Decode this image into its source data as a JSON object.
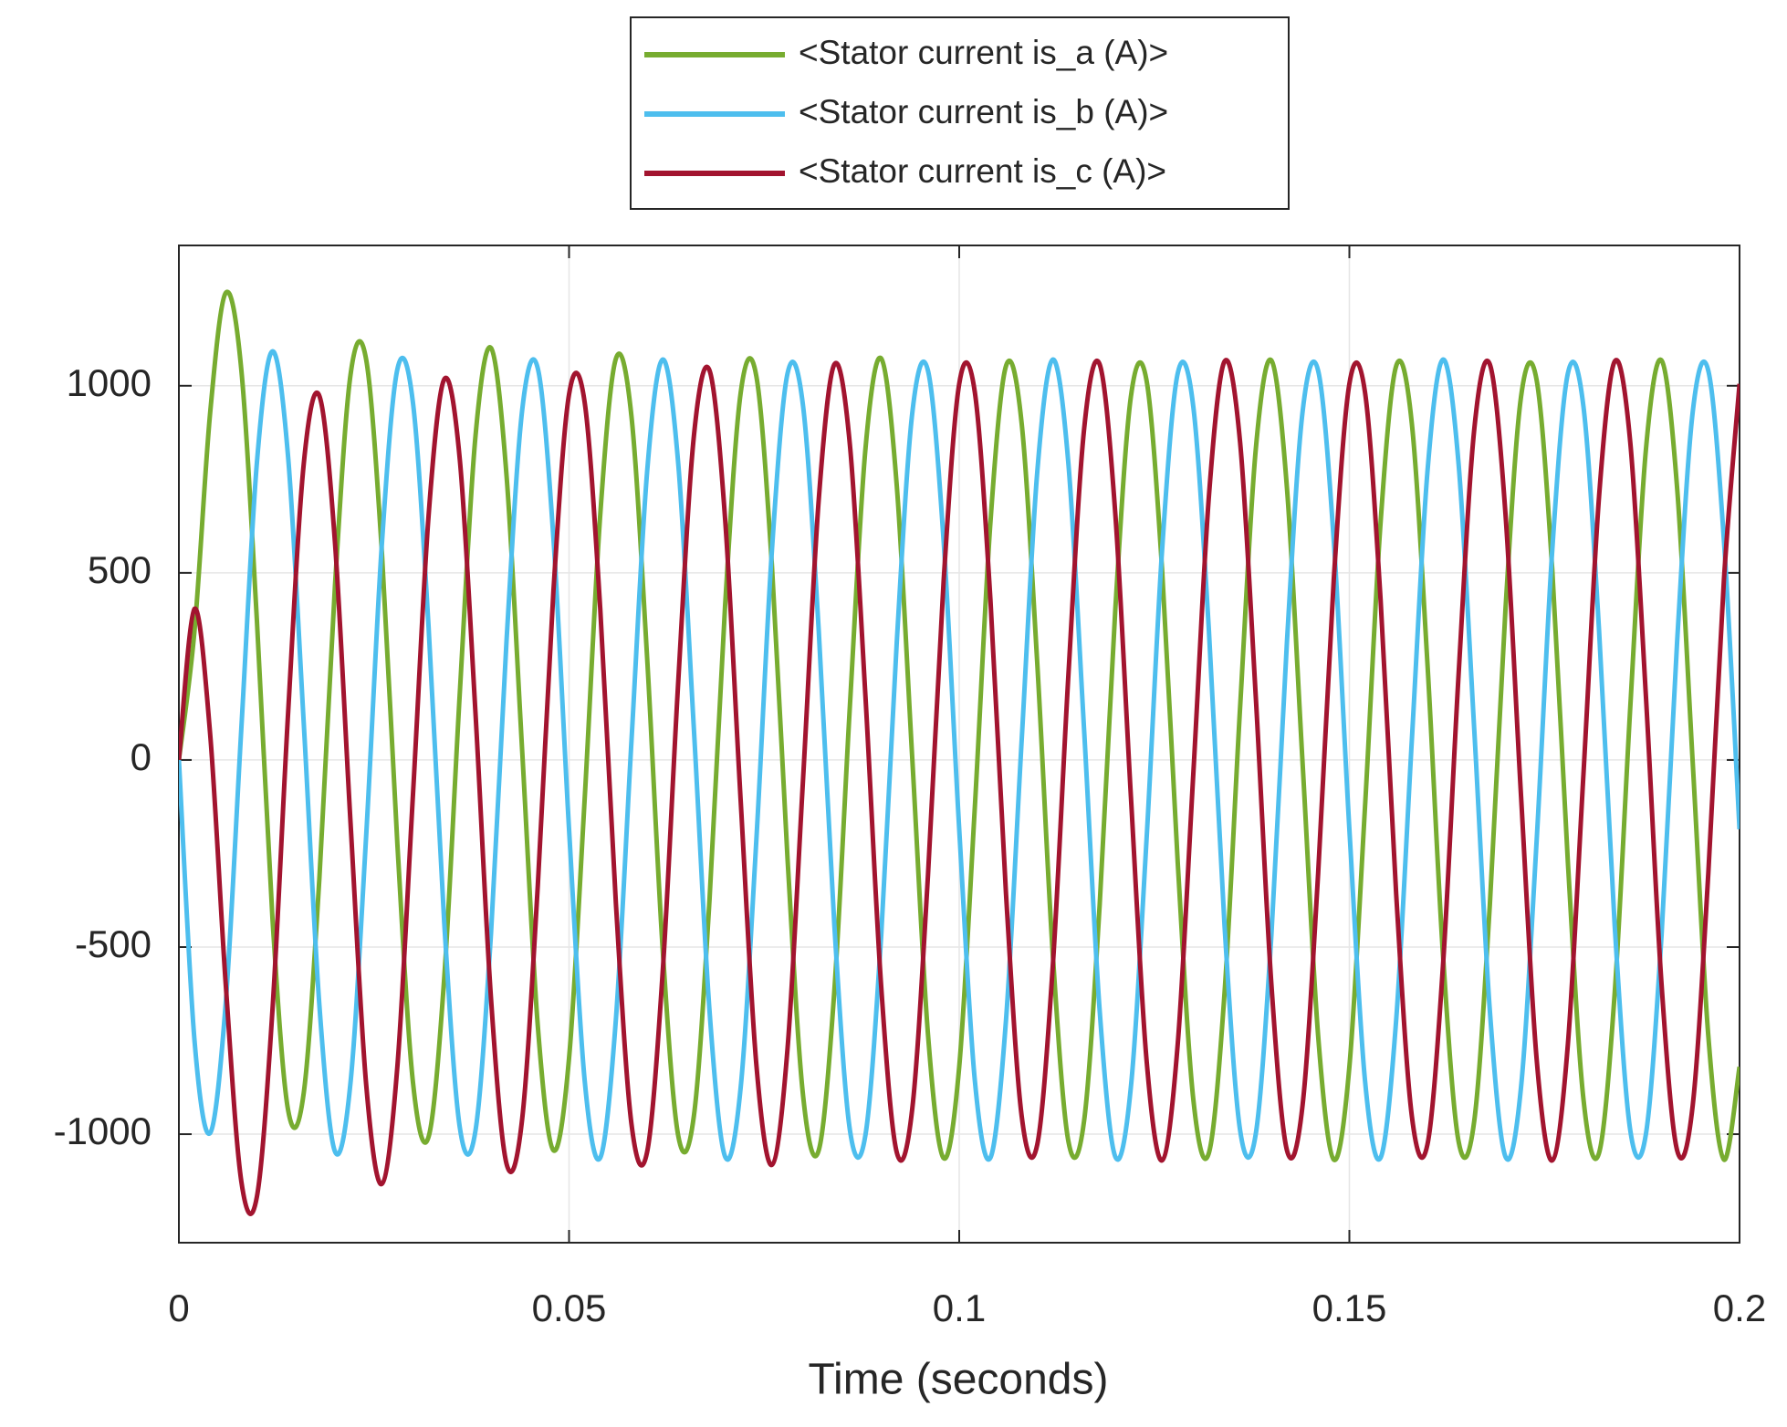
{
  "chart_data": {
    "type": "line",
    "xlabel": "Time (seconds)",
    "x": [
      0,
      0.002,
      0.004,
      0.006,
      0.008,
      0.01,
      0.012,
      0.014,
      0.016,
      0.018,
      0.02,
      0.022,
      0.024,
      0.026,
      0.028,
      0.03,
      0.032,
      0.034,
      0.036,
      0.038,
      0.04,
      0.042,
      0.044,
      0.046,
      0.048,
      0.05,
      0.052,
      0.054,
      0.056,
      0.058,
      0.06,
      0.062,
      0.064,
      0.066,
      0.068,
      0.07,
      0.072,
      0.074,
      0.076,
      0.078,
      0.08,
      0.082,
      0.084,
      0.086,
      0.088,
      0.09,
      0.092,
      0.094,
      0.096,
      0.098,
      0.1,
      0.102,
      0.104,
      0.106,
      0.108,
      0.11,
      0.112,
      0.114,
      0.116,
      0.118,
      0.12,
      0.122,
      0.124,
      0.126,
      0.128,
      0.13,
      0.132,
      0.134,
      0.136,
      0.138,
      0.14,
      0.142,
      0.144,
      0.146,
      0.148,
      0.15,
      0.152,
      0.154,
      0.156,
      0.158,
      0.16,
      0.162,
      0.164,
      0.166,
      0.168,
      0.17,
      0.172,
      0.174,
      0.176,
      0.178,
      0.18,
      0.182,
      0.184,
      0.186,
      0.188,
      0.19,
      0.192,
      0.194,
      0.196,
      0.198,
      0.2
    ],
    "series": [
      {
        "name": "<Stator current is_a (A)>",
        "color": "#77ac30",
        "values": [
          0,
          345,
          926,
          1248,
          1043,
          372,
          -426,
          -936,
          -890,
          -318,
          464,
          1030,
          1070,
          561,
          -225,
          -862,
          -1007,
          -584,
          179,
          863,
          1101,
          757,
          22,
          -712,
          -1043,
          -797,
          -105,
          656,
          1072,
          918,
          275,
          -506,
          -1005,
          -951,
          -374,
          413,
          982,
          1026,
          519,
          -264,
          -899,
          -1043,
          -616,
          148,
          835,
          1073,
          732,
          -2,
          -734,
          -1064,
          -820,
          -127,
          635,
          1053,
          900,
          259,
          -522,
          -1020,
          -965,
          -387,
          401,
          971,
          1015,
          509,
          -273,
          -907,
          -1050,
          -623,
          142,
          829,
          1068,
          727,
          -7,
          -738,
          -1068,
          -820,
          -127,
          635,
          1053,
          900,
          259,
          -522,
          -1020,
          -965,
          -387,
          401,
          971,
          1015,
          509,
          -273,
          -907,
          -1050,
          -623,
          142,
          829,
          1068,
          727,
          -7,
          -738,
          -1068,
          -820
        ]
      },
      {
        "name": "<Stator current is_b (A)>",
        "color": "#4dbeee",
        "values": [
          0,
          -749,
          -997,
          -650,
          83,
          795,
          1092,
          809,
          99,
          -654,
          -1046,
          -861,
          -203,
          573,
          1044,
          954,
          355,
          -433,
          -982,
          -992,
          -463,
          323,
          936,
          1046,
          592,
          -185,
          -856,
          -1063,
          -694,
          51,
          769,
          1070,
          790,
          82,
          -670,
          -1060,
          -874,
          -215,
          561,
          1033,
          944,
          345,
          -442,
          -990,
          -1000,
          -470,
          316,
          930,
          1040,
          586,
          -185,
          -856,
          -1063,
          -694,
          51,
          769,
          1070,
          790,
          82,
          -670,
          -1060,
          -874,
          -215,
          561,
          1033,
          944,
          345,
          -442,
          -990,
          -1000,
          -470,
          316,
          930,
          1040,
          586,
          -185,
          -856,
          -1063,
          -694,
          51,
          769,
          1070,
          790,
          82,
          -670,
          -1060,
          -874,
          -215,
          561,
          1033,
          944,
          345,
          -442,
          -990,
          -1000,
          -470,
          316,
          930,
          1040,
          586,
          -185
        ]
      },
      {
        "name": "<Stator current is_c (A)>",
        "color": "#a2142f",
        "values": [
          0,
          404,
          71,
          -598,
          -1126,
          -1167,
          -666,
          127,
          791,
          973,
          582,
          -169,
          -867,
          -1133,
          -819,
          -92,
          653,
          1017,
          803,
          129,
          -638,
          -1080,
          -958,
          -334,
          452,
          977,
          956,
          403,
          -382,
          -973,
          -1048,
          -567,
          212,
          866,
          1041,
          644,
          -111,
          -813,
          -1082,
          -771,
          -47,
          696,
          1057,
          840,
          164,
          -605,
          -1049,
          -929,
          -307,
          477,
          1005,
          983,
          428,
          -359,
          -951,
          -1028,
          -548,
          230,
          883,
          1057,
          659,
          -97,
          -800,
          -1070,
          -760,
          -37,
          705,
          1065,
          848,
          171,
          -598,
          -1043,
          -923,
          -302,
          482,
          1005,
          983,
          428,
          -359,
          -951,
          -1028,
          -548,
          230,
          883,
          1057,
          659,
          -97,
          -800,
          -1070,
          -760,
          -37,
          705,
          1065,
          848,
          171,
          -598,
          -1043,
          -923,
          -302,
          482,
          1005
        ]
      }
    ],
    "xlim": [
      0,
      0.2
    ],
    "ylim": [
      -1290,
      1375
    ],
    "xticks": [
      0,
      0.05,
      0.1,
      0.15,
      0.2
    ],
    "yticks": [
      -1000,
      -500,
      0,
      500,
      1000
    ],
    "grid": true
  }
}
